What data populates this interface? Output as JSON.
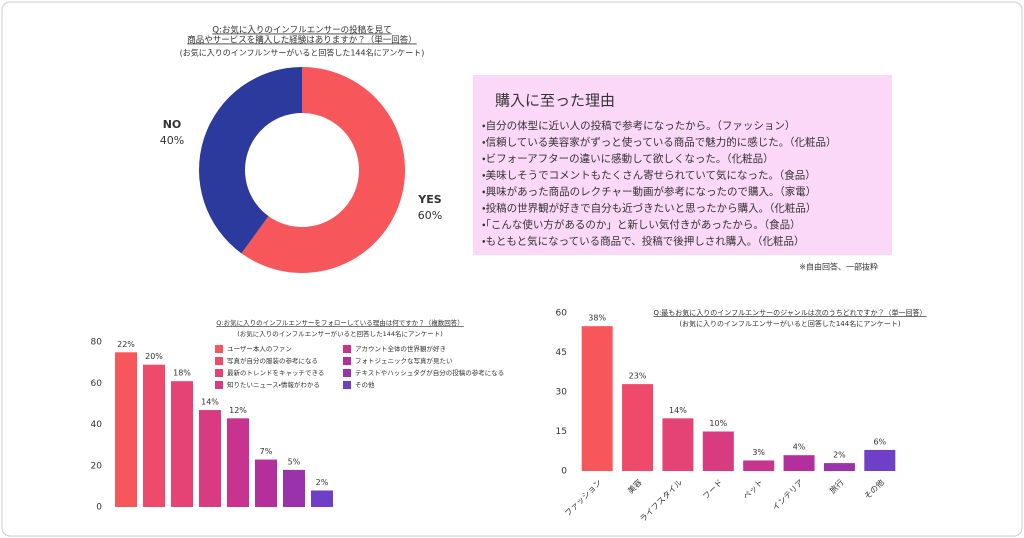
{
  "chart_data": [
    {
      "type": "donut",
      "title": [
        "Q:お気に入りのインフルエンサーの投稿を見て",
        "商品やサービスを購入した経験はありますか？（単一回答）"
      ],
      "subtitle": "(お気に入りのインフルンサーがいると回答した144名にアンケート)",
      "categories": [
        "YES",
        "NO"
      ],
      "values": [
        60,
        40
      ],
      "value_labels": [
        "60%",
        "40%"
      ],
      "colors": [
        "#f7565a",
        "#2b3a9c"
      ]
    },
    {
      "type": "bar",
      "title": "Q:お気に入りのインフルエンサーをフォローしている理由は何ですか？（複数回答）",
      "subtitle": "(お気に入りのインフルエンサーがいると回答した144名にアンケート)",
      "categories": [
        "ユーザー本人のファン",
        "写真が自分の服装の参考になる",
        "最新のトレンドをキャッチできる",
        "知りたいニュース・情報がわかる",
        "アカウント全体の世界観が好き",
        "フォトジェニックな写真が見たい",
        "テキストやハッシュタグが自分の投稿の参考になる",
        "その他"
      ],
      "values": [
        75,
        69,
        61,
        47,
        43,
        23,
        18,
        8
      ],
      "value_labels": [
        "22%",
        "20%",
        "18%",
        "14%",
        "12%",
        "7%",
        "5%",
        "2%"
      ],
      "colors": [
        "#f7565a",
        "#f04a6a",
        "#e54276",
        "#d93b80",
        "#c8338e",
        "#b42f9c",
        "#9a32ac",
        "#6f3fc7"
      ],
      "ylim": [
        0,
        80
      ],
      "yticks": [
        0,
        20,
        40,
        60,
        80
      ],
      "legend": "top-right"
    },
    {
      "type": "bar",
      "title": "Q:最もお気に入りのインフルエンサーのジャンルは次のうちどれですか？（単一回答）",
      "subtitle": "(お気に入りのインフルエンサーがいると回答した144名にアンケート)",
      "categories": [
        "ファッション",
        "美容",
        "ライフスタイル",
        "フード",
        "ペット",
        "インテリア",
        "旅行",
        "その他"
      ],
      "values": [
        55,
        33,
        20,
        15,
        4,
        6,
        3,
        8
      ],
      "value_labels": [
        "38%",
        "23%",
        "14%",
        "10%",
        "3%",
        "4%",
        "2%",
        "6%"
      ],
      "colors": [
        "#f7565a",
        "#f04a6a",
        "#e54276",
        "#d93b80",
        "#c8338e",
        "#b42f9c",
        "#9a32ac",
        "#6f3fc7"
      ],
      "ylim": [
        0,
        60
      ],
      "yticks": [
        0,
        15,
        30,
        45,
        60
      ]
    }
  ],
  "reasons_box": {
    "title": "購入に至った理由",
    "items": [
      "・自分の体型に近い人の投稿で参考になったから。（ファッション）",
      "・信頼している美容家がずっと使っている商品で魅力的に感じた。（化粧品）",
      "・ビフォーアフターの違いに感動して欲しくなった。（化粧品）",
      "・美味しそうでコメントもたくさん寄せられていて気になった。（食品）",
      "・興味があった商品のレクチャー動画が参考になったので購入。（家電）",
      "・投稿の世界観が好きで自分も近づきたいと思ったから購入。（化粧品）",
      "・「こんな使い方があるのか」と新しい気付きがあったから。（食品）",
      "・もともと気になっている商品で、投稿で後押しされ購入。（化粧品）"
    ],
    "note": "※自由回答、一部抜粋"
  }
}
